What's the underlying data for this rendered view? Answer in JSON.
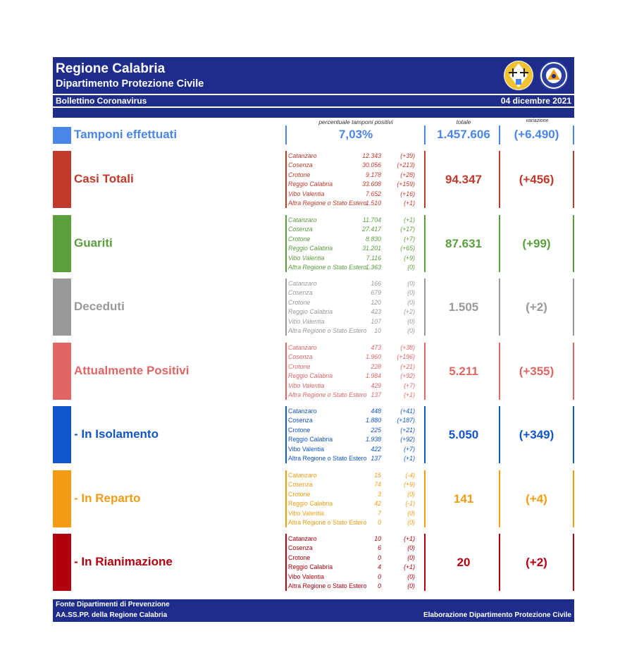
{
  "header": {
    "region": "Regione Calabria",
    "department": "Dipartimento Protezione Civile",
    "bulletin": "Bollettino Coronavirus",
    "date": "04 dicembre 2021",
    "logo_text": "PROTEZIONE CIVILE"
  },
  "columns": {
    "pct": "percentuale tamponi positivi",
    "total": "totale",
    "variation": "variazione"
  },
  "tamponi": {
    "label": "Tamponi effettuati",
    "pct": "7,03%",
    "total": "1.457.606",
    "variation": "(+6.490)",
    "color": "#4a86e8"
  },
  "categories": [
    {
      "label": "Casi Totali",
      "total": "94.347",
      "variation": "(+456)",
      "color": "#c0392b",
      "rows": [
        [
          "Catanzaro",
          "12.343",
          "(+39)"
        ],
        [
          "Cosenza",
          "30.056",
          "(+213)"
        ],
        [
          "Crotone",
          "9.178",
          "(+28)"
        ],
        [
          "Reggio Calabria",
          "33.608",
          "(+159)"
        ],
        [
          "Vibo Valentia",
          "7.652",
          "(+16)"
        ],
        [
          "Altra Regione o Stato Estero",
          "1.510",
          "(+1)"
        ]
      ]
    },
    {
      "label": "Guariti",
      "total": "87.631",
      "variation": "(+99)",
      "color": "#5a9e3e",
      "rows": [
        [
          "Catanzaro",
          "11.704",
          "(+1)"
        ],
        [
          "Cosenza",
          "27.417",
          "(+17)"
        ],
        [
          "Crotone",
          "8.830",
          "(+7)"
        ],
        [
          "Reggio Calabria",
          "31.201",
          "(+65)"
        ],
        [
          "Vibo Valentia",
          "7.116",
          "(+9)"
        ],
        [
          "Altra Regione o Stato Estero",
          "1.363",
          "(0)"
        ]
      ]
    },
    {
      "label": "Deceduti",
      "total": "1.505",
      "variation": "(+2)",
      "color": "#999999",
      "rows": [
        [
          "Catanzaro",
          "166",
          "(0)"
        ],
        [
          "Cosenza",
          "679",
          "(0)"
        ],
        [
          "Crotone",
          "120",
          "(0)"
        ],
        [
          "Reggio Calabria",
          "423",
          "(+2)"
        ],
        [
          "Vibo Valentia",
          "107",
          "(0)"
        ],
        [
          "Altra Regione o Stato Estero",
          "10",
          "(0)"
        ]
      ]
    },
    {
      "label": "Attualmente Positivi",
      "total": "5.211",
      "variation": "(+355)",
      "color": "#e06666",
      "rows": [
        [
          "Catanzaro",
          "473",
          "(+38)"
        ],
        [
          "Cosenza",
          "1.960",
          "(+196)"
        ],
        [
          "Crotone",
          "228",
          "(+21)"
        ],
        [
          "Reggio Calabria",
          "1.984",
          "(+92)"
        ],
        [
          "Vibo Valentia",
          "429",
          "(+7)"
        ],
        [
          "Altra Regione o Stato Estero",
          "137",
          "(+1)"
        ]
      ]
    },
    {
      "label": " - In Isolamento",
      "total": "5.050",
      "variation": "(+349)",
      "color": "#1155cc",
      "rows": [
        [
          "Catanzaro",
          "448",
          "(+41)"
        ],
        [
          "Cosenza",
          "1.880",
          "(+187)"
        ],
        [
          "Crotone",
          "225",
          "(+21)"
        ],
        [
          "Reggio Calabria",
          "1.938",
          "(+92)"
        ],
        [
          "Vibo Valentia",
          "422",
          "(+7)"
        ],
        [
          "Altra Regione o Stato Estero",
          "137",
          "(+1)"
        ]
      ]
    },
    {
      "label": " - In Reparto",
      "total": "141",
      "variation": "(+4)",
      "color": "#f39c12",
      "rows": [
        [
          "Catanzaro",
          "15",
          "(-4)"
        ],
        [
          "Cosenza",
          "74",
          "(+9)"
        ],
        [
          "Crotone",
          "3",
          "(0)"
        ],
        [
          "Reggio Calabria",
          "42",
          "(-1)"
        ],
        [
          "Vibo Valentia",
          "7",
          "(0)"
        ],
        [
          "Altra Regione o Stato Estero",
          "0",
          "(0)"
        ]
      ]
    },
    {
      "label": " - In Rianimazione",
      "total": "20",
      "variation": "(+2)",
      "color": "#b3000e",
      "rows": [
        [
          "Catanzaro",
          "10",
          "(+1)"
        ],
        [
          "Cosenza",
          "6",
          "(0)"
        ],
        [
          "Crotone",
          "0",
          "(0)"
        ],
        [
          "Reggio Calabria",
          "4",
          "(+1)"
        ],
        [
          "Vibo Valentia",
          "0",
          "(0)"
        ],
        [
          "Altra Regione o Stato Estero",
          "0",
          "(0)"
        ]
      ]
    }
  ],
  "footer": {
    "line1": "Fonte Dipartimenti di Prevenzione",
    "line2": "AA.SS.PP.  della Regione Calabria",
    "right": "Elaborazione Dipartimento Protezione Civile"
  }
}
